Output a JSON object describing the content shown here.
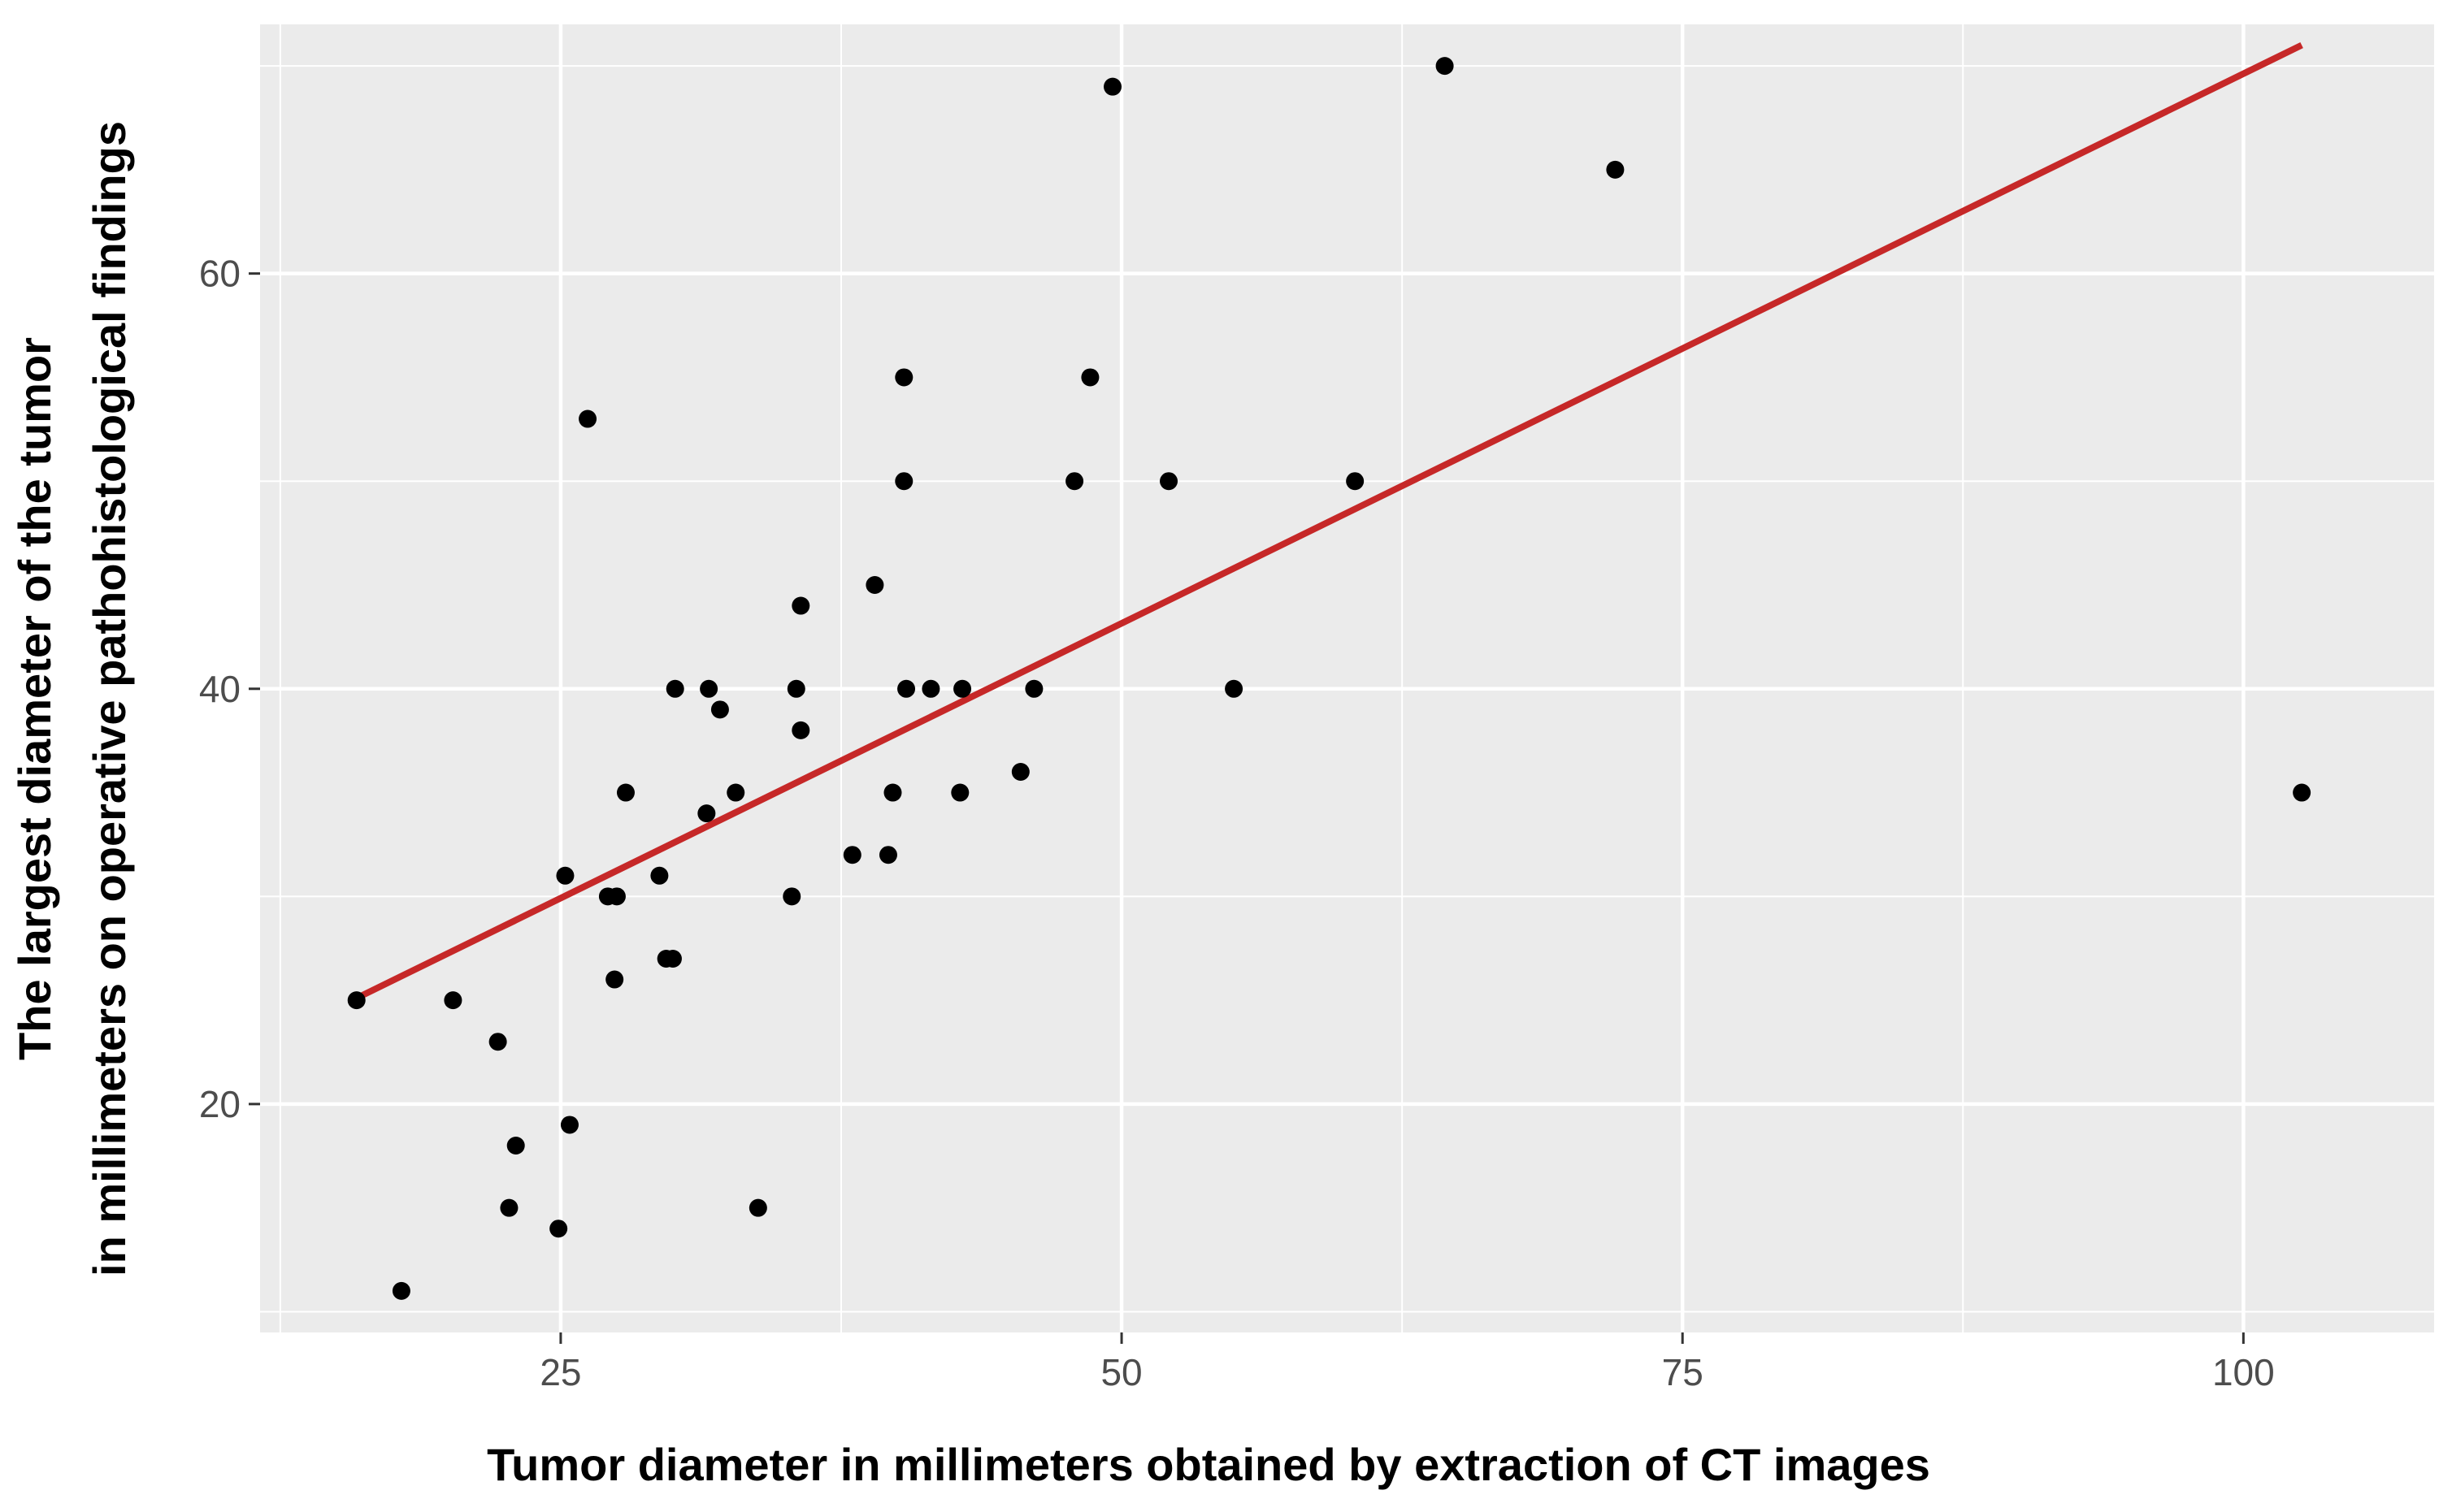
{
  "chart_data": {
    "type": "scatter",
    "xlabel": "Tumor diameter in millimeters obtained by extraction of CT images",
    "ylabel_lines": [
      "The largest diameter of the tumor",
      "in millimeters on operative pathohistological findings"
    ],
    "xlim": [
      11.6,
      108.5
    ],
    "ylim": [
      9.0,
      72.0
    ],
    "x_major_ticks": [
      25,
      50,
      75,
      100
    ],
    "x_tick_labels": [
      "25",
      "50",
      "75",
      "100"
    ],
    "x_minor_ticks": [
      12.5,
      37.5,
      62.5,
      87.5
    ],
    "y_major_ticks": [
      20,
      40,
      60
    ],
    "y_tick_labels": [
      "20",
      "40",
      "60"
    ],
    "y_minor_ticks": [
      10,
      30,
      50,
      70
    ],
    "grid": true,
    "legend": "none",
    "colors": {
      "panel_background": "#ebebeb",
      "grid": "#ffffff",
      "points": "#000000",
      "fit_line": "#c62828"
    },
    "points": [
      {
        "x": 15.9,
        "y": 25
      },
      {
        "x": 17.9,
        "y": 11
      },
      {
        "x": 20.2,
        "y": 25
      },
      {
        "x": 22.2,
        "y": 23
      },
      {
        "x": 22.7,
        "y": 15
      },
      {
        "x": 23.0,
        "y": 18
      },
      {
        "x": 24.9,
        "y": 14
      },
      {
        "x": 25.2,
        "y": 31
      },
      {
        "x": 25.4,
        "y": 19
      },
      {
        "x": 26.2,
        "y": 53
      },
      {
        "x": 27.1,
        "y": 30
      },
      {
        "x": 27.4,
        "y": 26
      },
      {
        "x": 27.5,
        "y": 30
      },
      {
        "x": 27.9,
        "y": 35
      },
      {
        "x": 29.4,
        "y": 31
      },
      {
        "x": 29.7,
        "y": 27
      },
      {
        "x": 30.0,
        "y": 27
      },
      {
        "x": 30.1,
        "y": 40
      },
      {
        "x": 31.5,
        "y": 34
      },
      {
        "x": 31.6,
        "y": 40
      },
      {
        "x": 32.1,
        "y": 39
      },
      {
        "x": 32.8,
        "y": 35
      },
      {
        "x": 33.8,
        "y": 15
      },
      {
        "x": 35.3,
        "y": 30
      },
      {
        "x": 35.5,
        "y": 40
      },
      {
        "x": 35.7,
        "y": 44
      },
      {
        "x": 35.7,
        "y": 38
      },
      {
        "x": 38.0,
        "y": 32
      },
      {
        "x": 39.0,
        "y": 45
      },
      {
        "x": 39.6,
        "y": 32
      },
      {
        "x": 39.8,
        "y": 35
      },
      {
        "x": 40.3,
        "y": 55
      },
      {
        "x": 40.3,
        "y": 50
      },
      {
        "x": 40.4,
        "y": 40
      },
      {
        "x": 41.5,
        "y": 40
      },
      {
        "x": 42.8,
        "y": 35
      },
      {
        "x": 42.9,
        "y": 40
      },
      {
        "x": 45.5,
        "y": 36
      },
      {
        "x": 46.1,
        "y": 40
      },
      {
        "x": 47.9,
        "y": 50
      },
      {
        "x": 48.6,
        "y": 55
      },
      {
        "x": 49.6,
        "y": 69
      },
      {
        "x": 52.1,
        "y": 50
      },
      {
        "x": 55.0,
        "y": 40
      },
      {
        "x": 60.4,
        "y": 50
      },
      {
        "x": 64.4,
        "y": 70
      },
      {
        "x": 72.0,
        "y": 65
      },
      {
        "x": 102.6,
        "y": 35
      }
    ],
    "fit_line": {
      "x1": 15.9,
      "y1": 25.1,
      "x2": 102.6,
      "y2": 71.0
    }
  }
}
